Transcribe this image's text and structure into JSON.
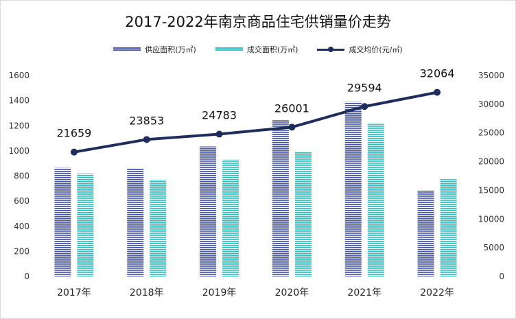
{
  "chart_data": {
    "type": "bar",
    "title": "2017-2022年南京商品住宅供销量价走势",
    "categories": [
      "2017年",
      "2018年",
      "2019年",
      "2020年",
      "2021年",
      "2022年"
    ],
    "series": [
      {
        "name": "供应面积(万㎡)",
        "type": "bar",
        "axis": "left",
        "color": "#4a5aa8",
        "values": [
          865,
          858,
          1035,
          1245,
          1390,
          685
        ]
      },
      {
        "name": "成交面积(万㎡)",
        "type": "bar",
        "axis": "left",
        "color": "#36bfc2",
        "values": [
          820,
          770,
          930,
          990,
          1215,
          775
        ]
      },
      {
        "name": "成交均价(元/㎡)",
        "type": "line",
        "axis": "right",
        "color": "#1f2d5c",
        "values": [
          21659,
          23853,
          24783,
          26001,
          29594,
          32064
        ],
        "labels": [
          "21659",
          "23853",
          "24783",
          "26001",
          "29594",
          "32064"
        ]
      }
    ],
    "y_left": {
      "ylim": [
        0,
        1600
      ],
      "ticks": [
        "0",
        "200",
        "400",
        "600",
        "800",
        "1000",
        "1200",
        "1400",
        "1600"
      ]
    },
    "y_right": {
      "ylim": [
        0,
        35000
      ],
      "ticks": [
        "0",
        "5000",
        "10000",
        "15000",
        "20000",
        "25000",
        "30000",
        "35000"
      ]
    },
    "legend_position": "top",
    "grid": false
  }
}
